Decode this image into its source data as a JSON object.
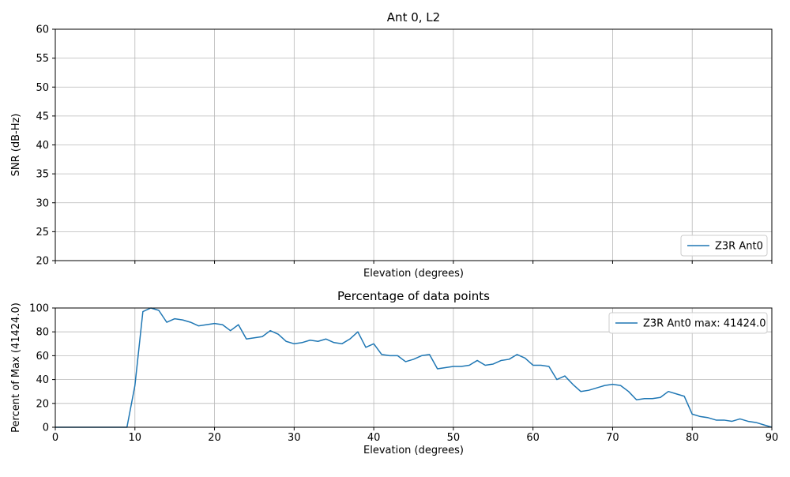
{
  "figure": {
    "background": "#ffffff",
    "line_color": "#1f77b4",
    "grid_color": "#b8b8b8",
    "spine_color": "#000000",
    "legend_edge_color": "#cccccc"
  },
  "chart_data": [
    {
      "type": "line",
      "title": "Ant 0, L2",
      "xlabel": "Elevation (degrees)",
      "ylabel": "SNR (dB-Hz)",
      "xlim": [
        0,
        90
      ],
      "ylim": [
        20,
        60
      ],
      "xticks": [
        0,
        10,
        20,
        30,
        40,
        50,
        60,
        70,
        80,
        90
      ],
      "yticks": [
        20,
        25,
        30,
        35,
        40,
        45,
        50,
        55,
        60
      ],
      "show_xticklabels": false,
      "grid": true,
      "legend": {
        "label": "Z3R Ant0",
        "position": "lower right"
      },
      "series": []
    },
    {
      "type": "line",
      "title": "Percentage of data points",
      "xlabel": "Elevation (degrees)",
      "ylabel": "Percent of Max (41424.0)",
      "xlim": [
        0,
        90
      ],
      "ylim": [
        0,
        100
      ],
      "xticks": [
        0,
        10,
        20,
        30,
        40,
        50,
        60,
        70,
        80,
        90
      ],
      "yticks": [
        0,
        20,
        40,
        60,
        80,
        100
      ],
      "show_xticklabels": true,
      "grid": true,
      "legend": {
        "label": "Z3R Ant0 max: 41424.0",
        "position": "upper right"
      },
      "series": [
        {
          "name": "Z3R Ant0",
          "x": [
            0,
            1,
            2,
            3,
            4,
            5,
            6,
            7,
            8,
            9,
            10,
            11,
            12,
            13,
            14,
            15,
            16,
            17,
            18,
            19,
            20,
            21,
            22,
            23,
            24,
            25,
            26,
            27,
            28,
            29,
            30,
            31,
            32,
            33,
            34,
            35,
            36,
            37,
            38,
            39,
            40,
            41,
            42,
            43,
            44,
            45,
            46,
            47,
            48,
            49,
            50,
            51,
            52,
            53,
            54,
            55,
            56,
            57,
            58,
            59,
            60,
            61,
            62,
            63,
            64,
            65,
            66,
            67,
            68,
            69,
            70,
            71,
            72,
            73,
            74,
            75,
            76,
            77,
            78,
            79,
            80,
            81,
            82,
            83,
            84,
            85,
            86,
            87,
            88,
            89,
            90
          ],
          "y": [
            0,
            0,
            0,
            0,
            0,
            0,
            0,
            0,
            0,
            0,
            35,
            97,
            100,
            98,
            88,
            91,
            90,
            88,
            85,
            86,
            87,
            86,
            81,
            86,
            74,
            75,
            76,
            81,
            78,
            72,
            70,
            71,
            73,
            72,
            74,
            71,
            70,
            74,
            80,
            67,
            70,
            61,
            60,
            60,
            55,
            57,
            60,
            61,
            49,
            50,
            51,
            51,
            52,
            56,
            52,
            53,
            56,
            57,
            61,
            58,
            52,
            52,
            51,
            40,
            43,
            36,
            30,
            31,
            33,
            35,
            36,
            35,
            30,
            23,
            24,
            24,
            25,
            30,
            28,
            26,
            11,
            9,
            8,
            6,
            6,
            5,
            7,
            5,
            4,
            2,
            0
          ]
        }
      ]
    }
  ]
}
